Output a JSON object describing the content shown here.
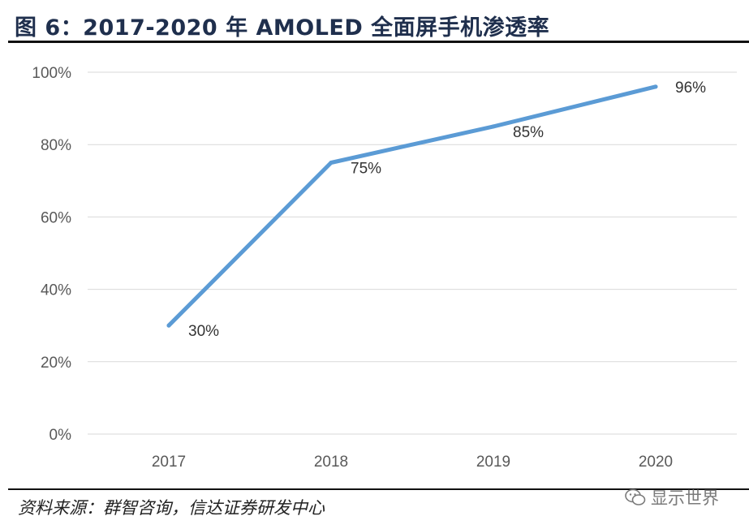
{
  "header": {
    "title": "图 6：2017-2020 年 AMOLED 全面屏手机渗透率"
  },
  "footer": {
    "source": "资料来源：群智咨询，信达证券研发中心",
    "watermark": "显示世界"
  },
  "colors": {
    "line": "#5b9bd5",
    "grid": "#d9d9d9",
    "axis_text": "#595959",
    "title": "#1f2f4d"
  },
  "chart_data": {
    "type": "line",
    "x": [
      "2017",
      "2018",
      "2019",
      "2020"
    ],
    "series": [
      {
        "values": [
          30,
          75,
          85,
          96
        ],
        "labels": [
          "30%",
          "75%",
          "85%",
          "96%"
        ]
      }
    ],
    "yticks": [
      "0%",
      "20%",
      "40%",
      "60%",
      "80%",
      "100%"
    ],
    "ylim": [
      0,
      100
    ],
    "grid": true,
    "legend": "none"
  }
}
